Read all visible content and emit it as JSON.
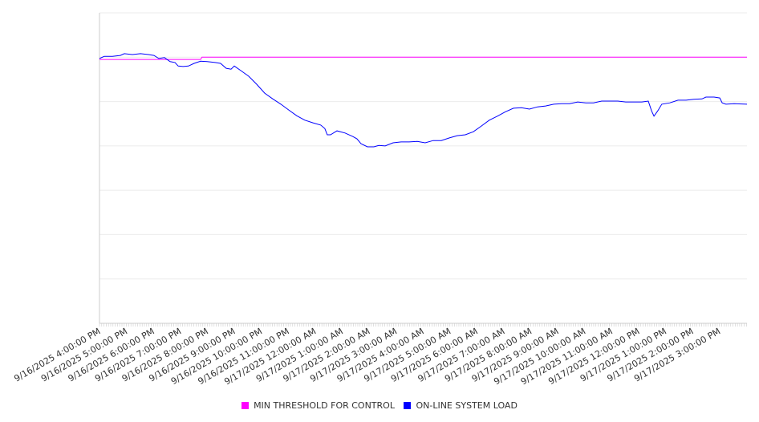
{
  "chart_data": {
    "type": "line",
    "title": "",
    "xlabel": "",
    "ylabel": "",
    "x_unit": "hours since 9/16/2025 4:00:00 PM",
    "xlim": [
      0,
      24.02
    ],
    "ylim": [
      0,
      7
    ],
    "grid": true,
    "y_tick_labels_shown": false,
    "legend_position": "bottom",
    "x_tick_labels": [
      "9/16/2025 4:00:00 PM",
      "9/16/2025 5:00:00 PM",
      "9/16/2025 6:00:00 PM",
      "9/16/2025 7:00:00 PM",
      "9/16/2025 8:00:00 PM",
      "9/16/2025 9:00:00 PM",
      "9/16/2025 10:00:00 PM",
      "9/16/2025 11:00:00 PM",
      "9/17/2025 12:00:00 AM",
      "9/17/2025 1:00:00 AM",
      "9/17/2025 2:00:00 AM",
      "9/17/2025 3:00:00 AM",
      "9/17/2025 4:00:00 AM",
      "9/17/2025 5:00:00 AM",
      "9/17/2025 6:00:00 AM",
      "9/17/2025 7:00:00 AM",
      "9/17/2025 8:00:00 AM",
      "9/17/2025 9:00:00 AM",
      "9/17/2025 10:00:00 AM",
      "9/17/2025 11:00:00 AM",
      "9/17/2025 12:00:00 PM",
      "9/17/2025 1:00:00 PM",
      "9/17/2025 2:00:00 PM",
      "9/17/2025 3:00:00 PM"
    ],
    "series": [
      {
        "name": "MIN THRESHOLD FOR CONTROL",
        "color": "#ff00ff",
        "x": [
          0,
          3.75,
          3.8,
          24.02
        ],
        "y": [
          5.95,
          5.95,
          6.0,
          6.0
        ]
      },
      {
        "name": "ON-LINE SYSTEM LOAD",
        "color": "#0000ff",
        "x": [
          0,
          0.18,
          0.48,
          0.77,
          0.92,
          1.22,
          1.52,
          1.82,
          2.02,
          2.2,
          2.41,
          2.62,
          2.8,
          2.92,
          3.1,
          3.3,
          3.51,
          3.75,
          3.99,
          4.29,
          4.49,
          4.7,
          4.88,
          5.0,
          5.24,
          5.54,
          5.83,
          6.13,
          6.43,
          6.73,
          7.02,
          7.32,
          7.62,
          7.92,
          8.21,
          8.36,
          8.45,
          8.57,
          8.81,
          9.11,
          9.4,
          9.55,
          9.7,
          9.94,
          10.18,
          10.36,
          10.6,
          10.89,
          11.19,
          11.49,
          11.79,
          12.08,
          12.38,
          12.68,
          12.98,
          13.27,
          13.57,
          13.87,
          14.17,
          14.46,
          14.76,
          15.06,
          15.36,
          15.65,
          15.95,
          16.25,
          16.55,
          16.85,
          17.14,
          17.44,
          17.74,
          18.04,
          18.33,
          18.63,
          18.93,
          19.23,
          19.52,
          19.82,
          20.12,
          20.36,
          20.48,
          20.57,
          20.71,
          20.86,
          21.16,
          21.46,
          21.76,
          22.05,
          22.35,
          22.5,
          22.8,
          23.01,
          23.1,
          23.24,
          23.54,
          24.02
        ],
        "y": [
          5.97,
          6.02,
          6.02,
          6.04,
          6.08,
          6.06,
          6.08,
          6.06,
          6.04,
          5.97,
          5.99,
          5.9,
          5.88,
          5.8,
          5.79,
          5.8,
          5.86,
          5.91,
          5.9,
          5.88,
          5.86,
          5.75,
          5.73,
          5.8,
          5.7,
          5.57,
          5.39,
          5.19,
          5.06,
          4.94,
          4.81,
          4.68,
          4.58,
          4.52,
          4.47,
          4.39,
          4.25,
          4.25,
          4.34,
          4.29,
          4.21,
          4.16,
          4.05,
          3.98,
          3.98,
          4.01,
          4.0,
          4.07,
          4.09,
          4.09,
          4.1,
          4.07,
          4.12,
          4.12,
          4.18,
          4.23,
          4.25,
          4.32,
          4.45,
          4.58,
          4.67,
          4.77,
          4.85,
          4.86,
          4.83,
          4.88,
          4.9,
          4.94,
          4.95,
          4.95,
          4.99,
          4.97,
          4.97,
          5.01,
          5.01,
          5.01,
          4.99,
          4.99,
          4.99,
          5.01,
          4.79,
          4.67,
          4.79,
          4.94,
          4.97,
          5.03,
          5.03,
          5.05,
          5.06,
          5.1,
          5.1,
          5.08,
          4.97,
          4.94,
          4.95,
          4.94
        ]
      }
    ]
  }
}
